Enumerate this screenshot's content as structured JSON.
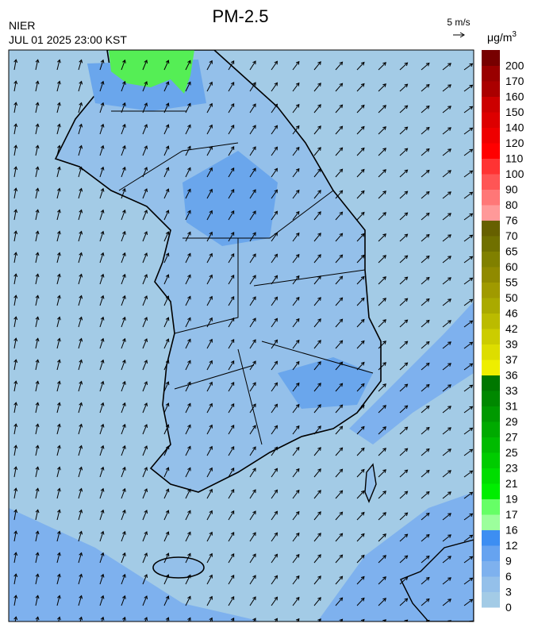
{
  "header": {
    "agency": "NIER",
    "timestamp": "JUL 01 2025 23:00 KST",
    "title": "PM-2.5"
  },
  "wind_scale": "5 m/s",
  "colorbar": {
    "unit": "μg/m",
    "unit_power": "3",
    "ticks": [
      0,
      3,
      6,
      9,
      12,
      16,
      17,
      19,
      21,
      23,
      25,
      27,
      29,
      31,
      33,
      36,
      37,
      39,
      42,
      46,
      50,
      55,
      60,
      65,
      70,
      76,
      80,
      90,
      100,
      110,
      120,
      140,
      150,
      160,
      170,
      200
    ],
    "colors": [
      "#a3cbe6",
      "#94c0ea",
      "#7eb1ee",
      "#66a3f0",
      "#3d8ef2",
      "#9cff9c",
      "#66ff66",
      "#00ee00",
      "#00dd00",
      "#00cc00",
      "#00bb00",
      "#00aa00",
      "#009900",
      "#008800",
      "#007700",
      "#eeee00",
      "#dddd00",
      "#cccc00",
      "#bbbb00",
      "#aaaa00",
      "#a09a00",
      "#908a00",
      "#808000",
      "#707000",
      "#666000",
      "#ff9999",
      "#ff7777",
      "#ff5555",
      "#ff3333",
      "#ff0000",
      "#ee0000",
      "#dd0000",
      "#cc0000",
      "#aa0000",
      "#990000",
      "#770000"
    ]
  }
}
